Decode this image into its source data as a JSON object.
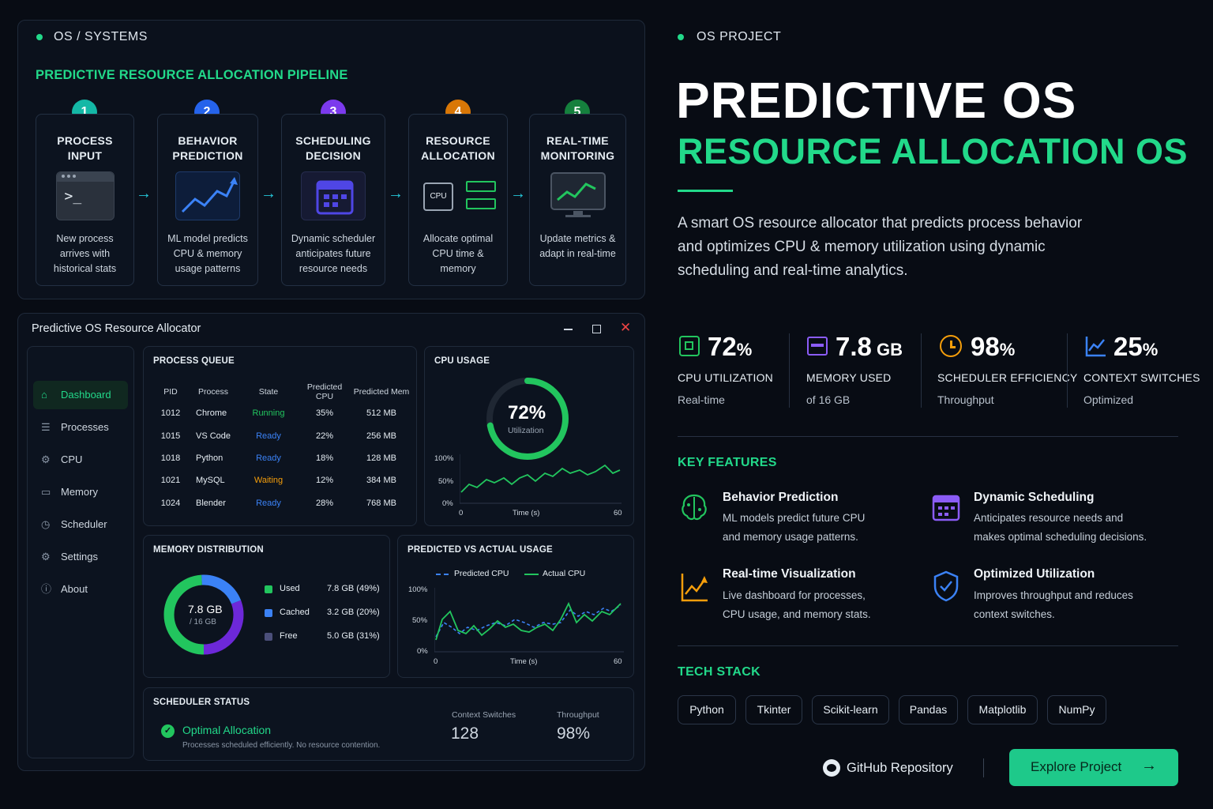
{
  "left_tag": "OS / SYSTEMS",
  "pipeline": {
    "title": "PREDICTIVE RESOURCE ALLOCATION PIPELINE",
    "steps": [
      {
        "num": "1",
        "title1": "PROCESS",
        "title2": "INPUT",
        "desc": [
          "New process",
          "arrives with",
          "historical stats"
        ],
        "color": "#14b8a6"
      },
      {
        "num": "2",
        "title1": "BEHAVIOR",
        "title2": "PREDICTION",
        "desc": [
          "ML model predicts",
          "CPU & memory",
          "usage patterns"
        ],
        "color": "#2563eb"
      },
      {
        "num": "3",
        "title1": "SCHEDULING",
        "title2": "DECISION",
        "desc": [
          "Dynamic scheduler",
          "anticipates future",
          "resource needs"
        ],
        "color": "#7c3aed"
      },
      {
        "num": "4",
        "title1": "RESOURCE",
        "title2": "ALLOCATION",
        "desc": [
          "Allocate optimal",
          "CPU time &",
          "memory"
        ],
        "color": "#d97706"
      },
      {
        "num": "5",
        "title1": "REAL-TIME",
        "title2": "MONITORING",
        "desc": [
          "Update metrics &",
          "adapt in real-time"
        ],
        "color": "#15803d"
      }
    ],
    "cpu_chip_label": "CPU"
  },
  "window": {
    "title": "Predictive OS Resource Allocator",
    "sidebar": [
      "Dashboard",
      "Processes",
      "CPU",
      "Memory",
      "Scheduler",
      "Settings",
      "About"
    ],
    "process_queue": {
      "title": "PROCESS QUEUE",
      "headers": [
        "PID",
        "Process",
        "State",
        "Predicted CPU",
        "Predicted Mem"
      ],
      "rows": [
        [
          "1012",
          "Chrome",
          "Running",
          "35%",
          "512 MB"
        ],
        [
          "1015",
          "VS Code",
          "Ready",
          "22%",
          "256 MB"
        ],
        [
          "1018",
          "Python",
          "Ready",
          "18%",
          "128 MB"
        ],
        [
          "1021",
          "MySQL",
          "Waiting",
          "12%",
          "384 MB"
        ],
        [
          "1024",
          "Blender",
          "Ready",
          "28%",
          "768 MB"
        ]
      ]
    },
    "cpu_usage": {
      "title": "CPU USAGE",
      "value": "72%",
      "label": "Utilization",
      "percent": 72,
      "y_ticks": [
        "100%",
        "50%",
        "0%"
      ],
      "x_start": "0",
      "x_label": "Time (s)",
      "x_end": "60"
    },
    "memory": {
      "title": "MEMORY DISTRIBUTION",
      "center": "7.8 GB",
      "center_sub": "/ 16 GB",
      "legend": [
        {
          "name": "Used",
          "value": "7.8 GB (49%)",
          "pct": 49,
          "color": "#22c55e"
        },
        {
          "name": "Cached",
          "value": "3.2 GB (20%)",
          "pct": 20,
          "color": "#3b82f6"
        },
        {
          "name": "Free",
          "value": "5.0 GB (31%)",
          "pct": 31,
          "color": "#6d28d9"
        }
      ]
    },
    "predicted": {
      "title": "PREDICTED VS ACTUAL USAGE",
      "legend_pred": "Predicted CPU",
      "legend_actual": "Actual CPU",
      "y_ticks": [
        "100%",
        "50%",
        "0%"
      ],
      "x_start": "0",
      "x_label": "Time (s)",
      "x_end": "60"
    },
    "scheduler": {
      "title": "SCHEDULER STATUS",
      "status": "Optimal Allocation",
      "desc": "Processes scheduled efficiently. No resource contention.",
      "cs_label": "Context Switches",
      "cs_value": "128",
      "tp_label": "Throughput",
      "tp_value": "98%"
    }
  },
  "right": {
    "tag": "OS PROJECT",
    "title1": "PREDICTIVE OS",
    "title2": "RESOURCE ALLOCATION OS",
    "description": [
      "A smart OS resource allocator that predicts process behavior",
      "and optimizes CPU & memory utilization using dynamic",
      "scheduling and real-time analytics."
    ],
    "stats": [
      {
        "value": "72",
        "unit": "%",
        "label": "CPU UTILIZATION",
        "sub": "Real-time",
        "icon": "cpu-icon",
        "color": "#22c55e"
      },
      {
        "value": "7.8",
        "unit": " GB",
        "label": "MEMORY USED",
        "sub": "of 16 GB",
        "icon": "memory-icon",
        "color": "#8b5cf6"
      },
      {
        "value": "98",
        "unit": "%",
        "label": "SCHEDULER EFFICIENCY",
        "sub": "Throughput",
        "icon": "clock-icon",
        "color": "#f59e0b"
      },
      {
        "value": "25",
        "unit": "%",
        "label": "CONTEXT SWITCHES",
        "sub": "Optimized",
        "icon": "chart-icon",
        "color": "#3b82f6"
      }
    ],
    "features_title": "KEY FEATURES",
    "features": [
      {
        "title": "Behavior Prediction",
        "desc": [
          "ML models predict future CPU",
          "and memory usage patterns."
        ]
      },
      {
        "title": "Dynamic Scheduling",
        "desc": [
          "Anticipates resource needs and",
          "makes optimal scheduling decisions."
        ]
      },
      {
        "title": "Real-time Visualization",
        "desc": [
          "Live dashboard for processes,",
          "CPU usage, and memory stats."
        ]
      },
      {
        "title": "Optimized Utilization",
        "desc": [
          "Improves throughput and reduces",
          "context switches."
        ]
      }
    ],
    "tech_title": "TECH STACK",
    "tech": [
      "Python",
      "Tkinter",
      "Scikit-learn",
      "Pandas",
      "Matplotlib",
      "NumPy"
    ],
    "github": "GitHub Repository",
    "explore": "Explore Project"
  },
  "colors": {
    "accent": "#22d98a",
    "background": "#080c14"
  }
}
